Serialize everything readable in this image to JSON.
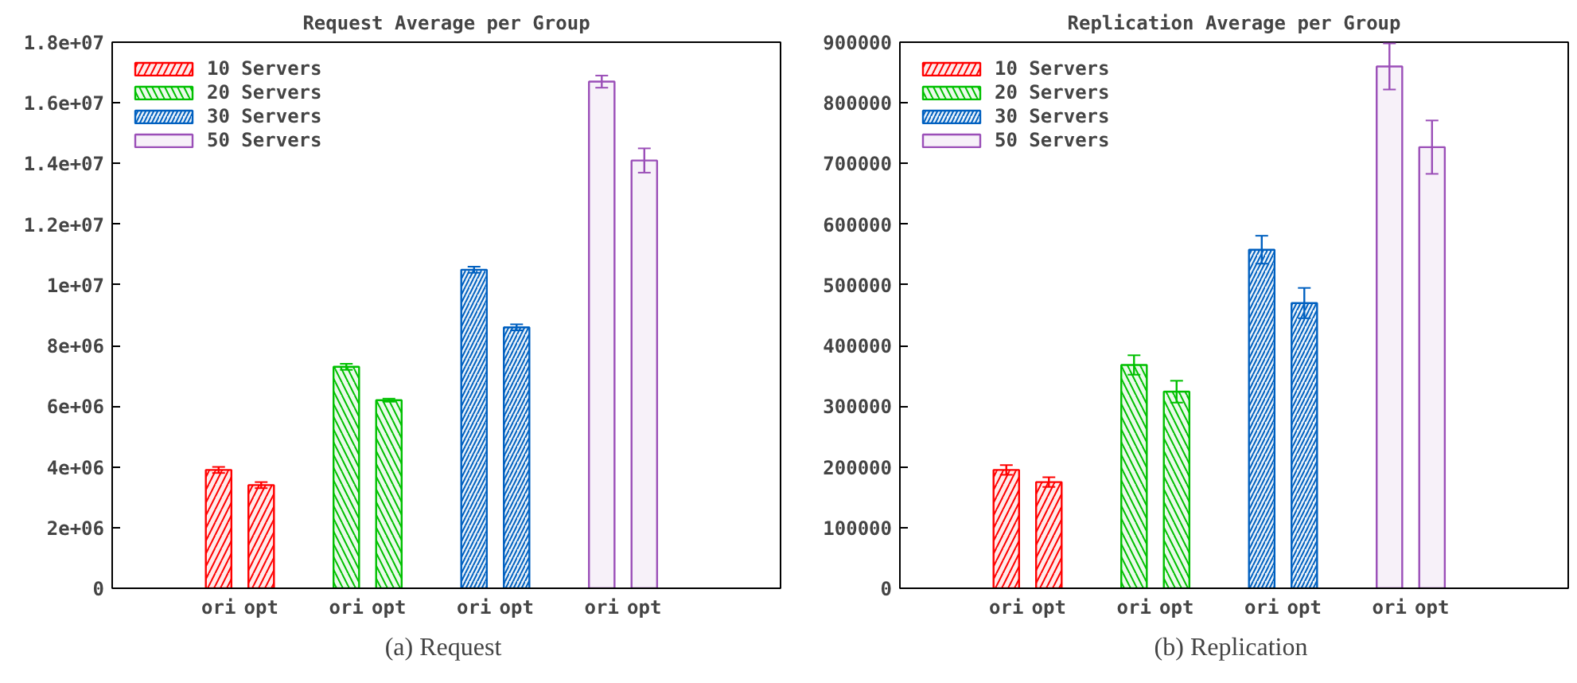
{
  "chart_data": [
    {
      "type": "bar",
      "title": "Request Average per Group",
      "categories": [
        "ori",
        "opt",
        "ori",
        "opt",
        "ori",
        "opt",
        "ori",
        "opt"
      ],
      "ylim": [
        0,
        18000000
      ],
      "yticks": [
        0,
        {
          "value": 2000000,
          "label": "2e+06"
        },
        {
          "value": 4000000,
          "label": "4e+06"
        },
        {
          "value": 6000000,
          "label": "6e+06"
        },
        {
          "value": 8000000,
          "label": "8e+06"
        },
        {
          "value": 10000000,
          "label": "1e+07"
        },
        {
          "value": 12000000,
          "label": "1.2e+07"
        },
        {
          "value": 14000000,
          "label": "1.4e+07"
        },
        {
          "value": 16000000,
          "label": "1.6e+07"
        },
        {
          "value": 18000000,
          "label": "1.8e+07"
        }
      ],
      "grid": false,
      "legend": "top left",
      "annotations": [
        "(a)  Request"
      ],
      "series": [
        {
          "name": "10 Servers",
          "color": "#ff0000",
          "values": [
            3900000,
            3400000,
            null,
            null,
            null,
            null,
            null,
            null
          ],
          "errors": [
            100000,
            100000,
            null,
            null,
            null,
            null,
            null,
            null
          ]
        },
        {
          "name": "20 Servers",
          "color": "#00c000",
          "values": [
            null,
            null,
            7300000,
            6200000,
            null,
            null,
            null,
            null
          ],
          "errors": [
            null,
            null,
            100000,
            50000,
            null,
            null,
            null,
            null
          ]
        },
        {
          "name": "30 Servers",
          "color": "#0060c0",
          "values": [
            null,
            null,
            null,
            null,
            10500000,
            8600000,
            null,
            null
          ],
          "errors": [
            null,
            null,
            null,
            null,
            100000,
            100000,
            null,
            null
          ]
        },
        {
          "name": "50 Servers",
          "color": "#9b4fb8",
          "values": [
            null,
            null,
            null,
            null,
            null,
            null,
            16700000,
            14100000
          ],
          "errors": [
            null,
            null,
            null,
            null,
            null,
            null,
            200000,
            400000
          ]
        }
      ]
    },
    {
      "type": "bar",
      "title": "Replication Average per Group",
      "categories": [
        "ori",
        "opt",
        "ori",
        "opt",
        "ori",
        "opt",
        "ori",
        "opt"
      ],
      "ylim": [
        0,
        900000
      ],
      "yticks": [
        0,
        100000,
        200000,
        300000,
        400000,
        500000,
        600000,
        700000,
        800000,
        900000
      ],
      "grid": false,
      "legend": "top left",
      "annotations": [
        "(b)  Replication"
      ],
      "series": [
        {
          "name": "10 Servers",
          "color": "#ff0000",
          "values": [
            195000,
            175000,
            null,
            null,
            null,
            null,
            null,
            null
          ],
          "errors": [
            8000,
            8000,
            null,
            null,
            null,
            null,
            null,
            null
          ]
        },
        {
          "name": "20 Servers",
          "color": "#00c000",
          "values": [
            null,
            null,
            368000,
            324000,
            null,
            null,
            null,
            null
          ],
          "errors": [
            null,
            null,
            16000,
            18000,
            null,
            null,
            null,
            null
          ]
        },
        {
          "name": "30 Servers",
          "color": "#0060c0",
          "values": [
            null,
            null,
            null,
            null,
            558000,
            470000,
            null,
            null
          ],
          "errors": [
            null,
            null,
            null,
            null,
            23000,
            25000,
            null,
            null
          ]
        },
        {
          "name": "50 Servers",
          "color": "#9b4fb8",
          "values": [
            null,
            null,
            null,
            null,
            null,
            null,
            860000,
            727000
          ],
          "errors": [
            null,
            null,
            null,
            null,
            null,
            null,
            38000,
            44000
          ]
        }
      ]
    }
  ]
}
